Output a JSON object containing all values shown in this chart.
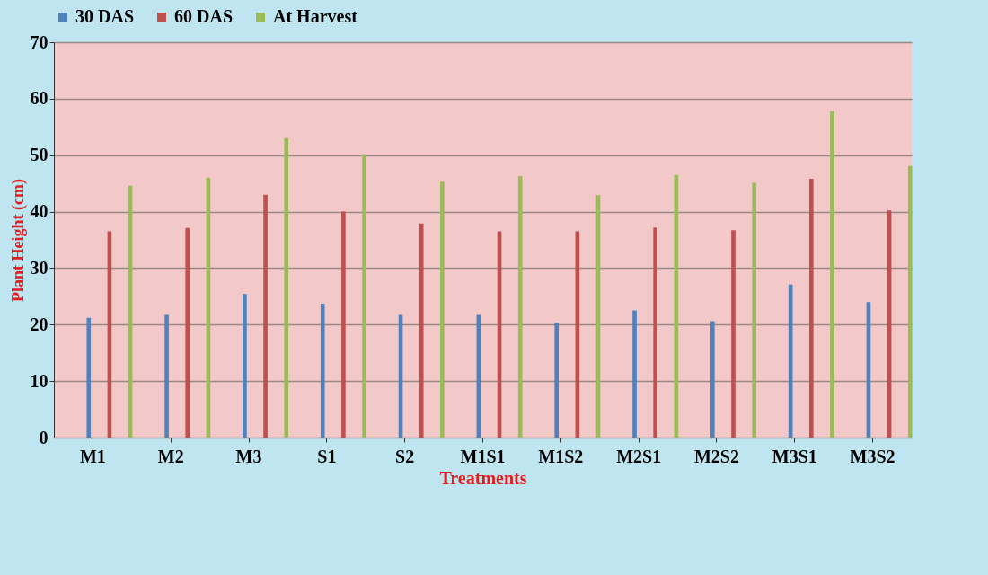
{
  "chart_data": {
    "type": "bar",
    "xlabel": "Treatments",
    "ylabel": "Plant  Height (cm)",
    "categories": [
      "M1",
      "M2",
      "M3",
      "S1",
      "S2",
      "M1S1",
      "M1S2",
      "M2S1",
      "M2S2",
      "M3S1",
      "M3S2"
    ],
    "series": [
      {
        "name": "30 DAS",
        "color": "#4f81bd",
        "values": [
          21.2,
          21.7,
          25.4,
          23.7,
          21.7,
          21.7,
          20.3,
          22.5,
          20.6,
          27.1,
          24.0
        ]
      },
      {
        "name": "60 DAS",
        "color": "#c0504d",
        "values": [
          36.5,
          37.1,
          43.0,
          40.0,
          37.9,
          36.5,
          36.5,
          37.2,
          36.7,
          45.8,
          40.2
        ]
      },
      {
        "name": "At Harvest",
        "color": "#9bbb59",
        "values": [
          44.6,
          46.0,
          53.0,
          50.2,
          45.3,
          46.3,
          42.9,
          46.5,
          45.1,
          57.8,
          48.1
        ]
      }
    ],
    "ylim": [
      0,
      70
    ],
    "yticks": [
      0,
      10,
      20,
      30,
      40,
      50,
      60,
      70
    ],
    "grid": "y",
    "legend": "top"
  }
}
